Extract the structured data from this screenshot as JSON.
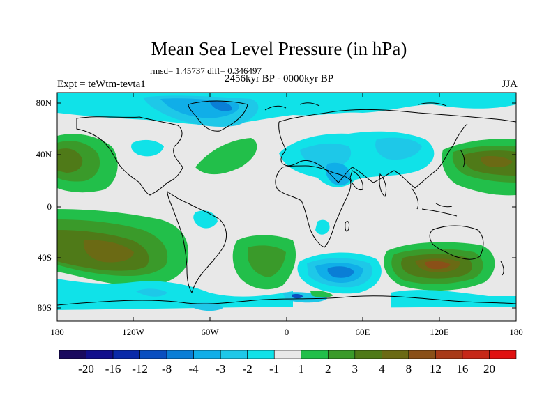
{
  "header": {
    "title": "Mean Sea Level Pressure (in hPa)",
    "stats": "rmsd= 1.45737 diff= 0.346497",
    "period": "2456kyr BP - 0000kyr BP",
    "experiment": "Expt = teWtm-tevta1",
    "season": "JJA"
  },
  "axes": {
    "lat_labels": [
      "80N",
      "40N",
      "0",
      "40S",
      "80S"
    ],
    "lon_labels": [
      "180",
      "120W",
      "60W",
      "0",
      "60E",
      "120E",
      "180"
    ]
  },
  "colorbar": {
    "labels": [
      "-20",
      "-16",
      "-12",
      "-8",
      "-4",
      "-3",
      "-2",
      "-1",
      "1",
      "2",
      "3",
      "4",
      "8",
      "12",
      "16",
      "20"
    ],
    "colors": [
      "#1a0a5e",
      "#120f8c",
      "#0a2aa8",
      "#0a4fc0",
      "#0a7ed6",
      "#10aee8",
      "#1ec8e8",
      "#10e2e8",
      "#e8e8e8",
      "#22bf4a",
      "#3a9a2a",
      "#4f7a18",
      "#6b6a14",
      "#8a5018",
      "#a83a18",
      "#c62818",
      "#e01010"
    ]
  },
  "map_colors": {
    "ocean_neutral": "#e8e8e8",
    "coast": "#000000"
  }
}
